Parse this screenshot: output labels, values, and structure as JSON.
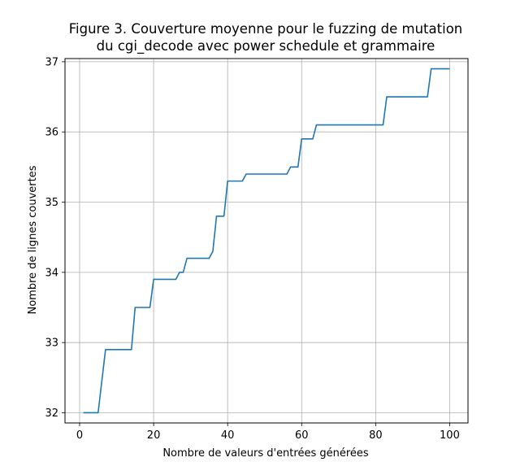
{
  "chart_data": {
    "type": "line",
    "title_lines": [
      "Figure 3. Couverture moyenne pour le fuzzing de mutation",
      "du cgi_decode avec power schedule et grammaire"
    ],
    "xlabel": "Nombre de valeurs d'entrées générées",
    "ylabel": "Nombre de lignes couvertes",
    "xlim": [
      -3.95,
      104.95
    ],
    "ylim": [
      31.855,
      37.045
    ],
    "xticks": [
      0,
      20,
      40,
      60,
      80,
      100
    ],
    "yticks": [
      32,
      33,
      34,
      35,
      36,
      37
    ],
    "grid": true,
    "legend": "none",
    "colors": {
      "line": "#1f77b4",
      "grid": "#b0b0b0",
      "axes": "#000000"
    },
    "series": [
      {
        "x": [
          1,
          5,
          7,
          14,
          15,
          19,
          20,
          26,
          27,
          28,
          29,
          35,
          36,
          37,
          38,
          39,
          40,
          44,
          45,
          56,
          57,
          59,
          60,
          63,
          64,
          82,
          83,
          94,
          95,
          100
        ],
        "y": [
          32.0,
          32.0,
          32.9,
          32.9,
          33.5,
          33.5,
          33.9,
          33.9,
          34.0,
          34.0,
          34.2,
          34.2,
          34.3,
          34.8,
          34.8,
          34.8,
          35.3,
          35.3,
          35.4,
          35.4,
          35.5,
          35.5,
          35.9,
          35.9,
          36.1,
          36.1,
          36.5,
          36.5,
          36.9,
          36.9
        ]
      }
    ]
  }
}
